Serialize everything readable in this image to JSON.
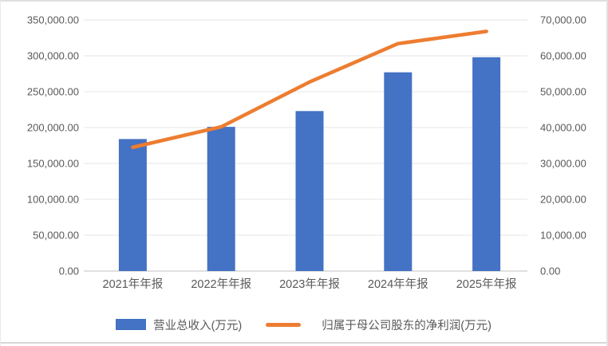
{
  "chart_data": {
    "type": "combo",
    "subtype": "bar+line, dual y-axes",
    "title": "",
    "categories": [
      "2021年年报",
      "2022年年报",
      "2023年年报",
      "2024年年报",
      "2025年年报"
    ],
    "series": [
      {
        "name": "营业总收入(万元)",
        "type": "bar",
        "axis": "left",
        "color": "#4472C4",
        "values": [
          184000,
          201000,
          223000,
          277000,
          298000
        ]
      },
      {
        "name": "归属于母公司股东的净利润(万元)",
        "type": "line",
        "axis": "right",
        "color": "#ED7D31",
        "values": [
          34500,
          40200,
          52700,
          63400,
          66800
        ]
      }
    ],
    "left_axis": {
      "min": 0,
      "max": 350000,
      "step": 50000,
      "tick_labels": [
        "350,000.00",
        "300,000.00",
        "250,000.00",
        "200,000.00",
        "150,000.00",
        "100,000.00",
        "50,000.00",
        "0.00"
      ]
    },
    "right_axis": {
      "min": 0,
      "max": 70000,
      "step": 10000,
      "tick_labels": [
        "70,000.00",
        "60,000.00",
        "50,000.00",
        "40,000.00",
        "30,000.00",
        "20,000.00",
        "10,000.00",
        "0.00"
      ]
    },
    "grid": "horizontal",
    "legend_position": "bottom",
    "styles": {
      "grid_color": "#E4E4E4",
      "axis_line_color": "#C2C2C2",
      "text_color": "#595959",
      "background": "#FFFFFF"
    }
  }
}
